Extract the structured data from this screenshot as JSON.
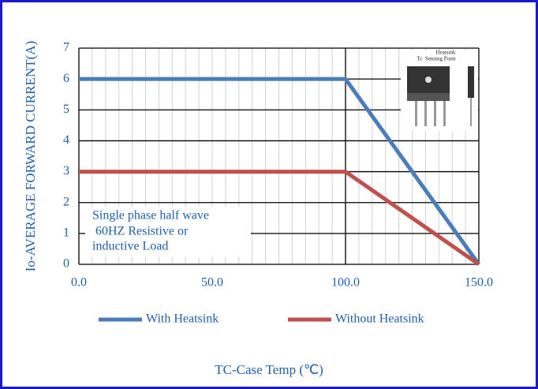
{
  "chart_data": {
    "type": "line",
    "x": [
      0,
      100,
      150
    ],
    "series": [
      {
        "name": "With Heatsink",
        "color": "#4a7ebb",
        "values": [
          6,
          6,
          0
        ]
      },
      {
        "name": "Without Heatsink",
        "color": "#c0504d",
        "values": [
          3,
          3,
          0
        ]
      }
    ],
    "xlim": [
      0,
      150
    ],
    "xticks": [
      {
        "value": 0,
        "label": "0.0"
      },
      {
        "value": 50,
        "label": "50.0"
      },
      {
        "value": 100,
        "label": "100.0"
      },
      {
        "value": 150,
        "label": "150.0"
      }
    ],
    "ylim": [
      0,
      7
    ],
    "yticks": [
      0,
      1,
      2,
      3,
      4,
      5,
      6,
      7
    ],
    "xlabel": "TC-Case Temp (℃)",
    "ylabel": "Io-AVERAGE FORWARD CURRENT(A)",
    "annotation": [
      "Single phase half wave",
      " 60HZ Resistive or",
      "inductive Load"
    ],
    "inset_labels": [
      "Heatsink",
      "Tc  Sensing Point"
    ],
    "grid": true,
    "legend": "bottom"
  }
}
